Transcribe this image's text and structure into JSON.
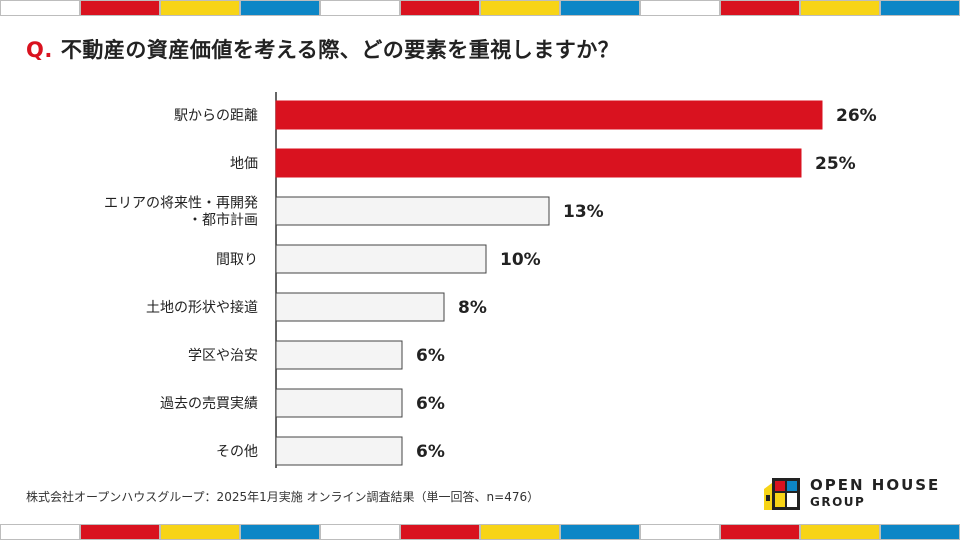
{
  "page": {
    "question_prefix": "Q.",
    "question_text": "不動産の資産価値を考える際、どの要素を重視しますか？",
    "footnote": "株式会社オープンハウスグループ：2025年1月実施 オンライン調査結果（単一回答、n=476）",
    "logo_line1": "OPEN HOUSE",
    "logo_line2": "GROUP"
  },
  "colors": {
    "accent": "#d9121f",
    "bar_plain": "#f4f4f4",
    "bar_border": "#444444",
    "stripe": [
      "#ffffff",
      "#d9121f",
      "#f7d417",
      "#0d86c6"
    ]
  },
  "chart_data": {
    "type": "bar",
    "orientation": "horizontal",
    "categories": [
      [
        "駅からの距離"
      ],
      [
        "地価"
      ],
      [
        "エリアの将来性・再開発",
        "・都市計画"
      ],
      [
        "間取り"
      ],
      [
        "土地の形状や接道"
      ],
      [
        "学区や治安"
      ],
      [
        "過去の売買実績"
      ],
      [
        "その他"
      ]
    ],
    "values": [
      26,
      25,
      13,
      10,
      8,
      6,
      6,
      6
    ],
    "value_labels": [
      "26%",
      "25%",
      "13%",
      "10%",
      "8%",
      "6%",
      "6%",
      "6%"
    ],
    "highlighted": [
      true,
      true,
      false,
      false,
      false,
      false,
      false,
      false
    ],
    "unit": "%",
    "xlim": [
      0,
      30
    ],
    "grid": false
  }
}
